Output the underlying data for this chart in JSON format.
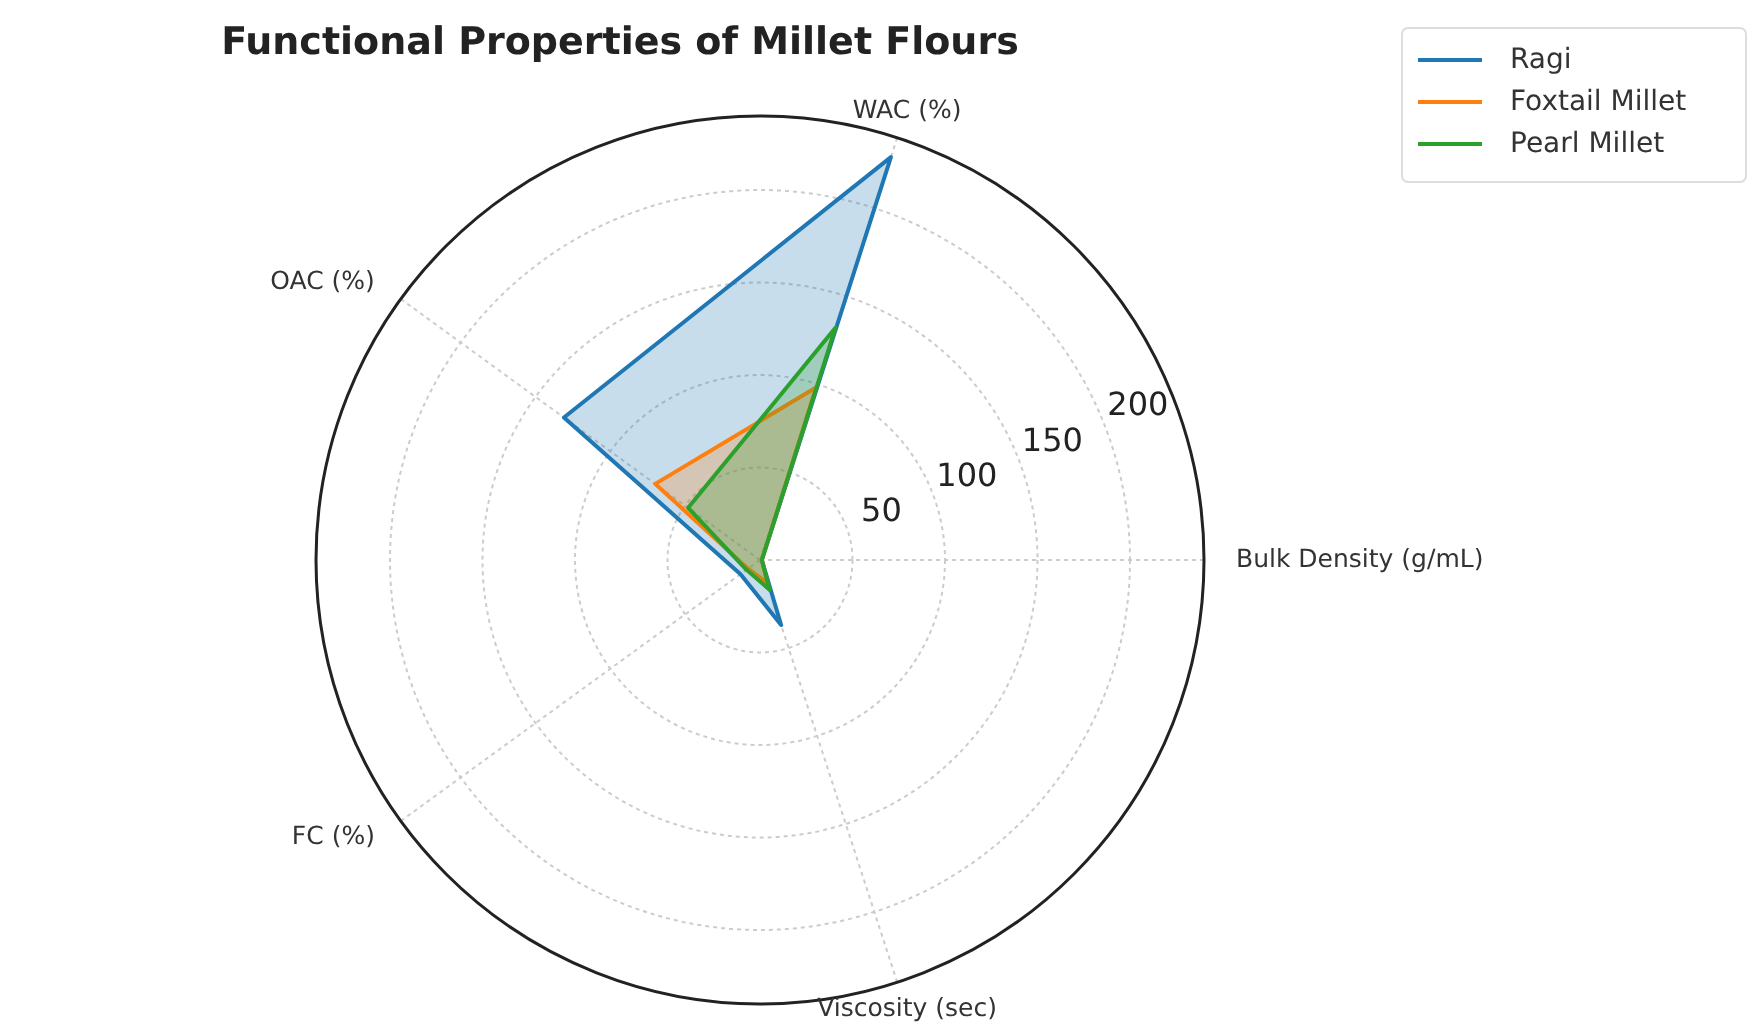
{
  "chart_data": {
    "type": "radar",
    "title": "Functional Properties of Millet Flours",
    "categories": [
      "WAC (%)",
      "Bulk Density (g/mL)",
      "Viscosity (sec)",
      "FC (%)",
      "OAC (%)"
    ],
    "series": [
      {
        "name": "Ragi",
        "color": "#1f77b4",
        "values": [
          229,
          1,
          37,
          13,
          131
        ]
      },
      {
        "name": "Foxtail Millet",
        "color": "#ff7f0e",
        "values": [
          98,
          1,
          13,
          8,
          70
        ]
      },
      {
        "name": "Pearl Millet",
        "color": "#2ca02c",
        "values": [
          132,
          1,
          17,
          9,
          48
        ]
      }
    ],
    "ylim": [
      0,
      240
    ],
    "yticks": [
      50,
      100,
      150,
      200
    ],
    "grid": true,
    "legend": "top right"
  }
}
